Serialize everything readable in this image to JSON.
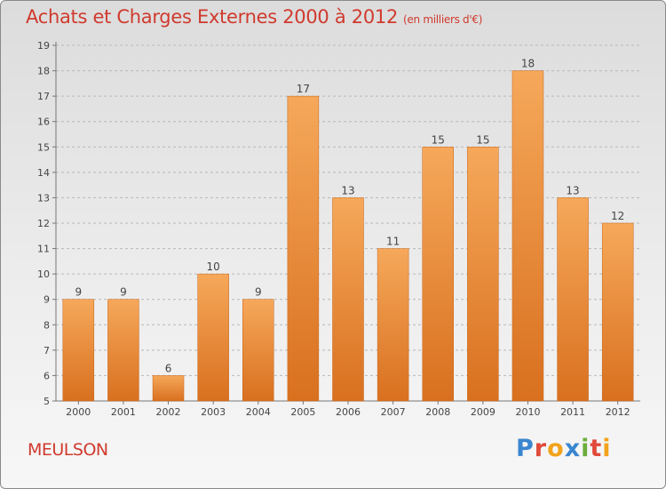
{
  "header": {
    "title": "Achats et Charges Externes 2000 à 2012",
    "unit": "(en milliers d'€)"
  },
  "footer": {
    "commune": "MEULSON",
    "logo_text": "Proxiti"
  },
  "colors": {
    "title": "#d03a2e",
    "bar_top": "#f6a85a",
    "bar_bottom": "#d8701f",
    "grid": "#b8b8b8"
  },
  "chart_data": {
    "type": "bar",
    "title": "Achats et Charges Externes 2000 à 2012",
    "subtitle": "(en milliers d'€)",
    "categories": [
      "2000",
      "2001",
      "2002",
      "2003",
      "2004",
      "2005",
      "2006",
      "2007",
      "2008",
      "2009",
      "2010",
      "2011",
      "2012"
    ],
    "values": [
      9,
      9,
      6,
      10,
      9,
      17,
      13,
      11,
      15,
      15,
      18,
      13,
      12
    ],
    "ylim": [
      5,
      19
    ],
    "yticks": [
      5,
      6,
      7,
      8,
      9,
      10,
      11,
      12,
      13,
      14,
      15,
      16,
      17,
      18,
      19
    ],
    "grid": true,
    "data_labels": true
  }
}
